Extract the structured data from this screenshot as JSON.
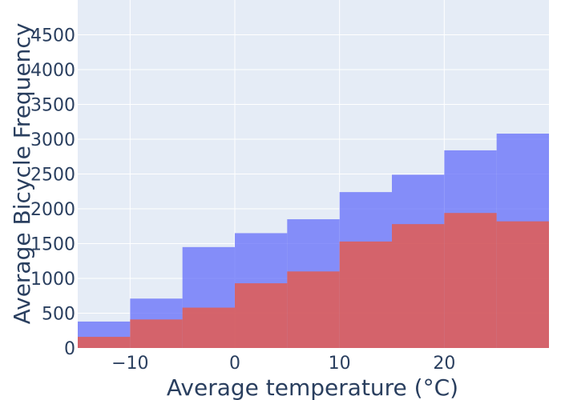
{
  "chart_data": {
    "type": "bar",
    "xlabel": "Average temperature (°C)",
    "ylabel": "Average Bicycle Frequency",
    "x_ticks": [
      "−10",
      "0",
      "10",
      "20"
    ],
    "x_tick_values": [
      -10,
      0,
      10,
      20
    ],
    "y_ticks": [
      "0",
      "500",
      "1000",
      "1500",
      "2000",
      "2500",
      "3000",
      "3500",
      "4000",
      "4500"
    ],
    "y_tick_values": [
      0,
      500,
      1000,
      1500,
      2000,
      2500,
      3000,
      3500,
      4000,
      4500
    ],
    "xlim": [
      -15,
      30
    ],
    "ylim": [
      0,
      5000
    ],
    "grid": true,
    "bins": [
      {
        "x0": -15,
        "x1": -10
      },
      {
        "x0": -10,
        "x1": -5
      },
      {
        "x0": -5,
        "x1": 0
      },
      {
        "x0": 0,
        "x1": 5
      },
      {
        "x0": 5,
        "x1": 10
      },
      {
        "x0": 10,
        "x1": 15
      },
      {
        "x0": 15,
        "x1": 20
      },
      {
        "x0": 20,
        "x1": 25
      },
      {
        "x0": 25,
        "x1": 30
      }
    ],
    "series": [
      {
        "color": "#636efa",
        "opacity": 0.75,
        "values": [
          380,
          710,
          1450,
          1650,
          1850,
          2240,
          2490,
          2840,
          3080
        ]
      },
      {
        "color": "#ef553b",
        "opacity": 0.75,
        "values": [
          160,
          410,
          580,
          930,
          1100,
          1530,
          1780,
          1940,
          1820
        ]
      }
    ],
    "plot_background": "#e5ecf6",
    "gridline_color": "#ffffff",
    "text_color": "#2a3f5f"
  }
}
